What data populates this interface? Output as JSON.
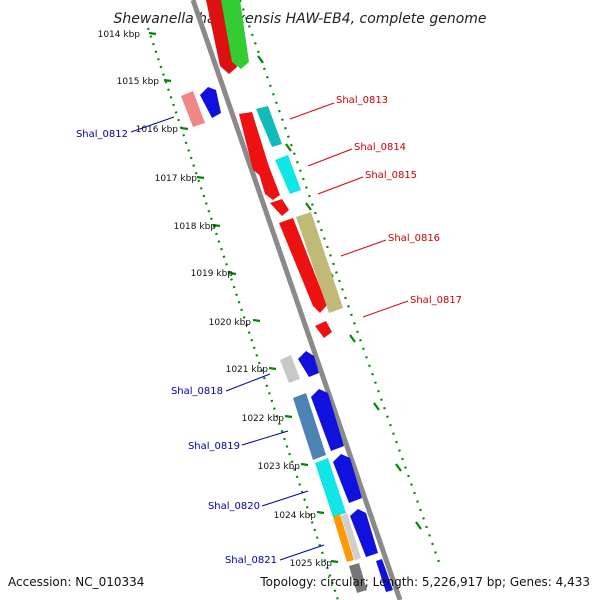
{
  "title": "Shewanella halifaxensis HAW-EB4, complete genome",
  "footer": {
    "accession": "Accession: NC_010334",
    "summary": "Topology: circular; Length: 5,226,917 bp; Genes: 4,433"
  },
  "kbp_labels": [
    "1014 kbp",
    "1015 kbp",
    "1016 kbp",
    "1017 kbp",
    "1018 kbp",
    "1019 kbp",
    "1020 kbp",
    "1021 kbp",
    "1022 kbp",
    "1023 kbp",
    "1024 kbp",
    "1025 kbp"
  ],
  "gene_labels": {
    "shal_0812": "Shal_0812",
    "shal_0813": "Shal_0813",
    "shal_0814": "Shal_0814",
    "shal_0815": "Shal_0815",
    "shal_0816": "Shal_0816",
    "shal_0817": "Shal_0817",
    "shal_0818": "Shal_0818",
    "shal_0819": "Shal_0819",
    "shal_0820": "Shal_0820",
    "shal_0821": "Shal_0821"
  },
  "colors": {
    "forward_label": "#cc0000",
    "reverse_label": "#0000aa",
    "backbone": "#888888",
    "tick": "#008800"
  }
}
